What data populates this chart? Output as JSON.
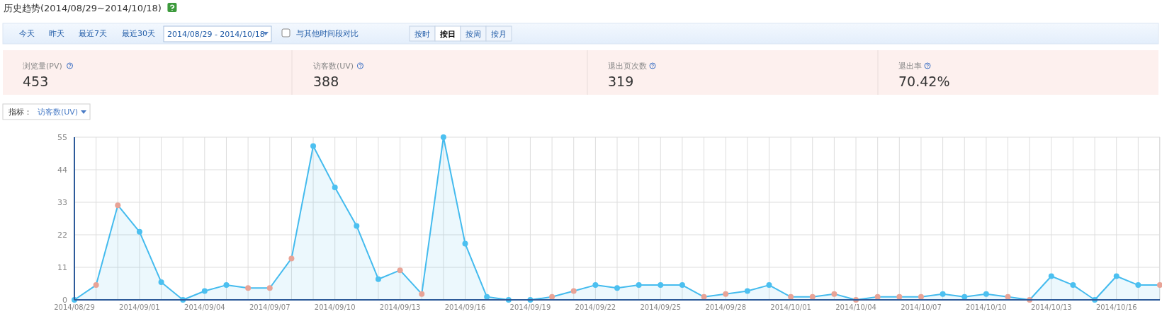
{
  "chart_data": {
    "type": "area",
    "title": "历史趋势(2014/08/29~2014/10/18)",
    "annotations": [
      "今天",
      "昨天",
      "最近7天",
      "最近30天",
      "2014/08/29 - 2014/10/18",
      "与其他时间段对比",
      "按时",
      "按日",
      "按周",
      "按月",
      "浏览量(PV)",
      "453",
      "访客数(UV)",
      "388",
      "退出页次数",
      "319",
      "退出率",
      "70.42%",
      "指标：",
      "访客数(UV)"
    ],
    "x": [
      "2014-08-29",
      "2014-08-30",
      "2014-08-31",
      "2014-09-01",
      "2014-09-02",
      "2014-09-03",
      "2014-09-04",
      "2014-09-05",
      "2014-09-06",
      "2014-09-07",
      "2014-09-08",
      "2014-09-09",
      "2014-09-10",
      "2014-09-11",
      "2014-09-12",
      "2014-09-13",
      "2014-09-14",
      "2014-09-15",
      "2014-09-16",
      "2014-09-17",
      "2014-09-18",
      "2014-09-19",
      "2014-09-20",
      "2014-09-21",
      "2014-09-22",
      "2014-09-23",
      "2014-09-24",
      "2014-09-25",
      "2014-09-26",
      "2014-09-27",
      "2014-09-28",
      "2014-09-29",
      "2014-09-30",
      "2014-10-01",
      "2014-10-02",
      "2014-10-03",
      "2014-10-04",
      "2014-10-05",
      "2014-10-06",
      "2014-10-07",
      "2014-10-08",
      "2014-10-09",
      "2014-10-10",
      "2014-10-11",
      "2014-10-12",
      "2014-10-13",
      "2014-10-14",
      "2014-10-15",
      "2014-10-16",
      "2014-10-17",
      "2014-10-18"
    ],
    "series": [
      {
        "color": "#44bbee",
        "values": [
          0,
          5,
          32,
          23,
          6,
          0,
          3,
          5,
          4,
          4,
          14,
          52,
          38,
          25,
          7,
          10,
          2,
          55,
          19,
          1,
          0,
          0,
          1,
          3,
          5,
          4,
          5,
          5,
          5,
          1,
          2,
          3,
          5,
          1,
          1,
          2,
          0,
          1,
          1,
          1,
          2,
          1,
          2,
          1,
          0,
          8,
          5,
          0,
          8,
          5,
          5
        ],
        "colors": [
          "#4cc0f0",
          "#e8a396",
          "#e8a396",
          "#4cc0f0",
          "#4cc0f0",
          "#4cc0f0",
          "#4cc0f0",
          "#4cc0f0",
          "#e8a396",
          "#e8a396",
          "#e8a396",
          "#4cc0f0",
          "#4cc0f0",
          "#4cc0f0",
          "#4cc0f0",
          "#e8a396",
          "#e8a396",
          "#4cc0f0",
          "#4cc0f0",
          "#4cc0f0",
          "#4cc0f0",
          "#4cc0f0",
          "#e8a396",
          "#e8a396",
          "#4cc0f0",
          "#4cc0f0",
          "#4cc0f0",
          "#4cc0f0",
          "#4cc0f0",
          "#e8a396",
          "#e8a396",
          "#4cc0f0",
          "#4cc0f0",
          "#e8a396",
          "#e8a396",
          "#e8a396",
          "#e8a396",
          "#e8a396",
          "#e8a396",
          "#e8a396",
          "#4cc0f0",
          "#4cc0f0",
          "#4cc0f0",
          "#e8a396",
          "#e8a396",
          "#4cc0f0",
          "#4cc0f0",
          "#4cc0f0",
          "#4cc0f0",
          "#4cc0f0",
          "#e8a396"
        ]
      }
    ],
    "xlim": [
      "2014-08-29",
      "2014-10-18"
    ],
    "xticks": [
      {
        "value": "2014-08-29",
        "label": "2014/08/29"
      },
      {
        "value": "2014-09-01",
        "label": "2014/09/01"
      },
      {
        "value": "2014-09-04",
        "label": "2014/09/04"
      },
      {
        "value": "2014-09-07",
        "label": "2014/09/07"
      },
      {
        "value": "2014-09-10",
        "label": "2014/09/10"
      },
      {
        "value": "2014-09-13",
        "label": "2014/09/13"
      },
      {
        "value": "2014-09-16",
        "label": "2014/09/16"
      },
      {
        "value": "2014-09-19",
        "label": "2014/09/19"
      },
      {
        "value": "2014-09-22",
        "label": "2014/09/22"
      },
      {
        "value": "2014-09-25",
        "label": "2014/09/25"
      },
      {
        "value": "2014-09-28",
        "label": "2014/09/28"
      },
      {
        "value": "2014-10-01",
        "label": "2014/10/01"
      },
      {
        "value": "2014-10-04",
        "label": "2014/10/04"
      },
      {
        "value": "2014-10-07",
        "label": "2014/10/07"
      },
      {
        "value": "2014-10-10",
        "label": "2014/10/10"
      },
      {
        "value": "2014-10-13",
        "label": "2014/10/13"
      },
      {
        "value": "2014-10-16",
        "label": "2014/10/16"
      }
    ],
    "ylim": [
      0,
      55
    ],
    "yticks": [
      0,
      11,
      22,
      33,
      44,
      55
    ],
    "grid": true,
    "marker": "circle"
  }
}
